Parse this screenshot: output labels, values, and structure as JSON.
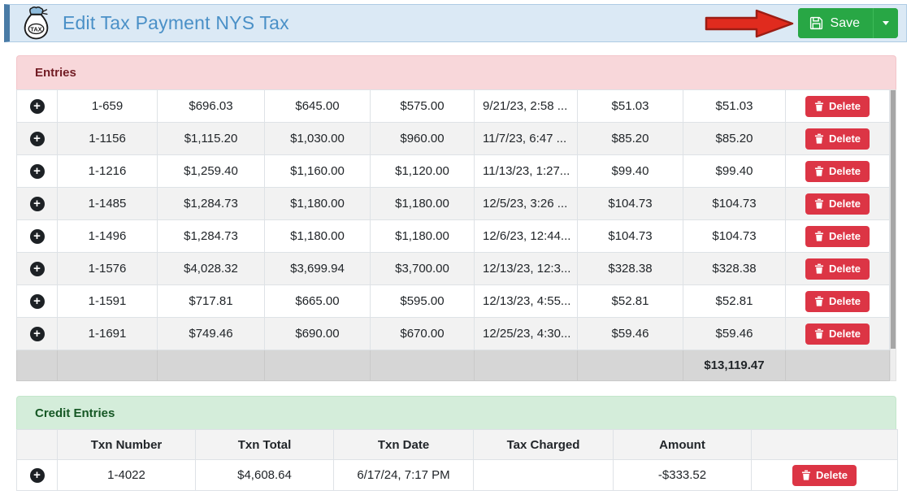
{
  "header": {
    "title": "Edit Tax Payment NYS Tax",
    "save_label": "Save"
  },
  "colors": {
    "accent_blue": "#4a7ba6",
    "titlebar_bg": "#dbe9f5",
    "title_text": "#4a90c7",
    "entries_header_bg": "#f8d7da",
    "entries_header_text": "#721c24",
    "credit_header_bg": "#d4edda",
    "credit_header_text": "#155724",
    "save_green": "#28a745",
    "delete_red": "#dc3545",
    "arrow_red": "#e02b1e",
    "stripe_gray": "#f2f2f2",
    "total_row_gray": "#d6d6d6"
  },
  "icons": {
    "title_icon": "tax-money-bag-icon",
    "save_icon": "floppy-disk-icon",
    "delete_icon": "trash-icon",
    "expand_icon": "plus-circle-icon",
    "annotation": "red-arrow-icon"
  },
  "entries": {
    "section_title": "Entries",
    "delete_label": "Delete",
    "rows": [
      {
        "values": [
          "1-659",
          "$696.03",
          "$645.00",
          "$575.00",
          "9/21/23, 2:58 ...",
          "$51.03",
          "$51.03"
        ]
      },
      {
        "values": [
          "1-1156",
          "$1,115.20",
          "$1,030.00",
          "$960.00",
          "11/7/23, 6:47 ...",
          "$85.20",
          "$85.20"
        ]
      },
      {
        "values": [
          "1-1216",
          "$1,259.40",
          "$1,160.00",
          "$1,120.00",
          "11/13/23, 1:27...",
          "$99.40",
          "$99.40"
        ]
      },
      {
        "values": [
          "1-1485",
          "$1,284.73",
          "$1,180.00",
          "$1,180.00",
          "12/5/23, 3:26 ...",
          "$104.73",
          "$104.73"
        ]
      },
      {
        "values": [
          "1-1496",
          "$1,284.73",
          "$1,180.00",
          "$1,180.00",
          "12/6/23, 12:44...",
          "$104.73",
          "$104.73"
        ]
      },
      {
        "values": [
          "1-1576",
          "$4,028.32",
          "$3,699.94",
          "$3,700.00",
          "12/13/23, 12:3...",
          "$328.38",
          "$328.38"
        ]
      },
      {
        "values": [
          "1-1591",
          "$717.81",
          "$665.00",
          "$595.00",
          "12/13/23, 4:55...",
          "$52.81",
          "$52.81"
        ]
      },
      {
        "values": [
          "1-1691",
          "$749.46",
          "$690.00",
          "$670.00",
          "12/25/23, 4:30...",
          "$59.46",
          "$59.46"
        ]
      }
    ],
    "total": "$13,119.47"
  },
  "credit_entries": {
    "section_title": "Credit Entries",
    "delete_label": "Delete",
    "columns": [
      "Txn Number",
      "Txn Total",
      "Txn Date",
      "Tax Charged",
      "Amount"
    ],
    "rows": [
      {
        "values": [
          "1-4022",
          "$4,608.64",
          "6/17/24, 7:17 PM",
          "",
          "-$333.52"
        ]
      }
    ]
  }
}
